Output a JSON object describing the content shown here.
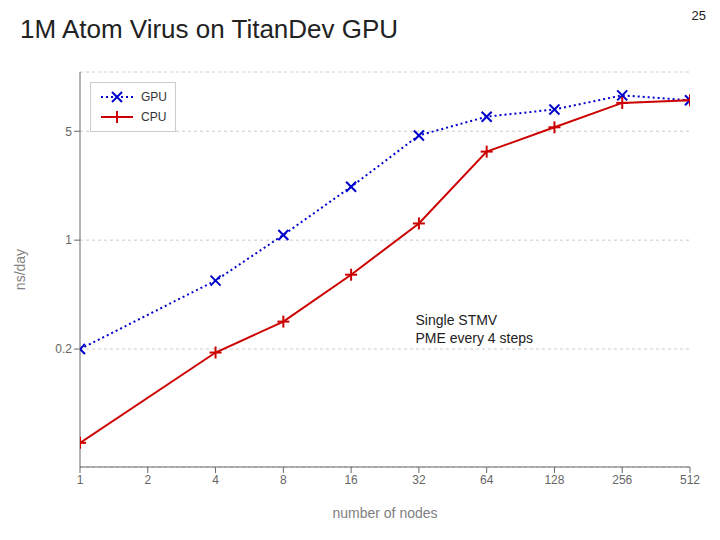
{
  "chart_data": {
    "type": "line",
    "title": "1M Atom Virus on TitanDev GPU",
    "x_label": "number of nodes",
    "y_label": "ns/day",
    "annotations": [
      "25",
      "Single STMV\nPME every 4 steps"
    ],
    "x": [
      1,
      4,
      8,
      16,
      32,
      64,
      128,
      256,
      512
    ],
    "series": [
      {
        "name": "GPU",
        "color": "#0000cc",
        "marker": "x",
        "line_style": "dotted",
        "values": [
          0.2,
          0.55,
          1.08,
          2.2,
          4.7,
          6.2,
          6.9,
          8.5,
          7.9
        ]
      },
      {
        "name": "CPU",
        "color": "#cc0000",
        "marker": "+",
        "line_style": "solid",
        "values": [
          0.05,
          0.19,
          0.3,
          0.6,
          1.28,
          3.7,
          5.3,
          7.6,
          7.9
        ]
      }
    ],
    "xlim": [
      1,
      512
    ],
    "xticks": [
      1,
      2,
      4,
      8,
      16,
      32,
      64,
      128,
      256,
      512
    ],
    "ylim": [
      0.035,
      12.0
    ],
    "yticks": [
      0.2,
      1,
      5
    ],
    "log": true,
    "grid": "y",
    "legend": "upper left"
  }
}
